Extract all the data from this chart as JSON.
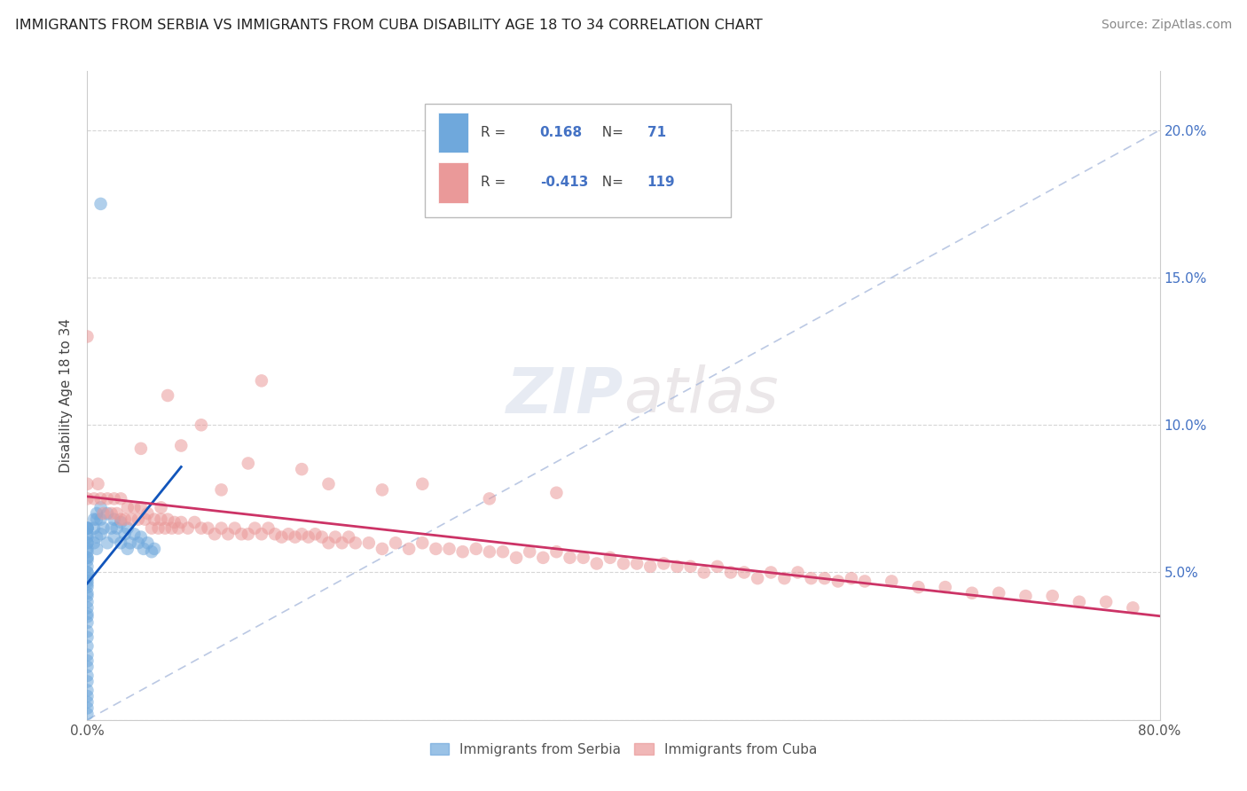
{
  "title": "IMMIGRANTS FROM SERBIA VS IMMIGRANTS FROM CUBA DISABILITY AGE 18 TO 34 CORRELATION CHART",
  "source": "Source: ZipAtlas.com",
  "ylabel": "Disability Age 18 to 34",
  "xlim": [
    0.0,
    0.8
  ],
  "ylim": [
    0.0,
    0.22
  ],
  "serbia_color": "#6fa8dc",
  "cuba_color": "#ea9999",
  "serbia_line_color": "#1155bb",
  "cuba_line_color": "#cc3366",
  "diag_color": "#aabbdd",
  "serbia_R": 0.168,
  "serbia_N": 71,
  "cuba_R": -0.413,
  "cuba_N": 119,
  "legend_serbia": "Immigrants from Serbia",
  "legend_cuba": "Immigrants from Cuba",
  "watermark_zip": "ZIP",
  "watermark_atlas": "atlas",
  "right_tick_color": "#4472c4",
  "serbia_x": [
    0.0,
    0.0,
    0.0,
    0.0,
    0.0,
    0.0,
    0.0,
    0.0,
    0.0,
    0.0,
    0.0,
    0.0,
    0.0,
    0.0,
    0.0,
    0.0,
    0.0,
    0.0,
    0.0,
    0.0,
    0.0,
    0.0,
    0.0,
    0.0,
    0.0,
    0.0,
    0.0,
    0.0,
    0.0,
    0.0,
    0.0,
    0.0,
    0.0,
    0.0,
    0.0,
    0.0,
    0.0,
    0.0,
    0.0,
    0.0,
    0.005,
    0.005,
    0.005,
    0.007,
    0.007,
    0.007,
    0.007,
    0.01,
    0.01,
    0.01,
    0.012,
    0.015,
    0.015,
    0.018,
    0.02,
    0.02,
    0.022,
    0.025,
    0.025,
    0.028,
    0.03,
    0.03,
    0.032,
    0.035,
    0.038,
    0.04,
    0.042,
    0.045,
    0.048,
    0.05,
    0.01
  ],
  "serbia_y": [
    0.065,
    0.065,
    0.065,
    0.065,
    0.063,
    0.062,
    0.06,
    0.06,
    0.058,
    0.057,
    0.055,
    0.055,
    0.054,
    0.052,
    0.05,
    0.05,
    0.048,
    0.047,
    0.046,
    0.045,
    0.043,
    0.042,
    0.04,
    0.038,
    0.036,
    0.035,
    0.033,
    0.03,
    0.028,
    0.025,
    0.022,
    0.02,
    0.018,
    0.015,
    0.013,
    0.01,
    0.008,
    0.006,
    0.004,
    0.002,
    0.068,
    0.065,
    0.06,
    0.07,
    0.068,
    0.062,
    0.058,
    0.072,
    0.068,
    0.063,
    0.065,
    0.07,
    0.06,
    0.065,
    0.068,
    0.062,
    0.065,
    0.067,
    0.06,
    0.063,
    0.065,
    0.058,
    0.06,
    0.063,
    0.06,
    0.062,
    0.058,
    0.06,
    0.057,
    0.058,
    0.175
  ],
  "cuba_x": [
    0.0,
    0.0,
    0.0,
    0.005,
    0.008,
    0.01,
    0.012,
    0.015,
    0.018,
    0.02,
    0.022,
    0.025,
    0.028,
    0.03,
    0.033,
    0.035,
    0.038,
    0.04,
    0.043,
    0.045,
    0.048,
    0.05,
    0.053,
    0.055,
    0.058,
    0.06,
    0.063,
    0.065,
    0.068,
    0.07,
    0.075,
    0.08,
    0.085,
    0.09,
    0.095,
    0.1,
    0.105,
    0.11,
    0.115,
    0.12,
    0.125,
    0.13,
    0.135,
    0.14,
    0.145,
    0.15,
    0.155,
    0.16,
    0.165,
    0.17,
    0.175,
    0.18,
    0.185,
    0.19,
    0.195,
    0.2,
    0.21,
    0.22,
    0.23,
    0.24,
    0.25,
    0.26,
    0.27,
    0.28,
    0.29,
    0.3,
    0.31,
    0.32,
    0.33,
    0.34,
    0.35,
    0.36,
    0.37,
    0.38,
    0.39,
    0.4,
    0.41,
    0.42,
    0.43,
    0.44,
    0.45,
    0.46,
    0.47,
    0.48,
    0.49,
    0.5,
    0.51,
    0.52,
    0.53,
    0.54,
    0.55,
    0.56,
    0.57,
    0.58,
    0.6,
    0.62,
    0.64,
    0.66,
    0.68,
    0.7,
    0.72,
    0.74,
    0.76,
    0.78,
    0.085,
    0.12,
    0.06,
    0.18,
    0.25,
    0.3,
    0.35,
    0.13,
    0.22,
    0.16,
    0.04,
    0.07,
    0.1,
    0.025,
    0.055
  ],
  "cuba_y": [
    0.08,
    0.075,
    0.13,
    0.075,
    0.08,
    0.075,
    0.07,
    0.075,
    0.07,
    0.075,
    0.07,
    0.075,
    0.068,
    0.072,
    0.068,
    0.072,
    0.068,
    0.072,
    0.068,
    0.07,
    0.065,
    0.068,
    0.065,
    0.068,
    0.065,
    0.068,
    0.065,
    0.067,
    0.065,
    0.067,
    0.065,
    0.067,
    0.065,
    0.065,
    0.063,
    0.065,
    0.063,
    0.065,
    0.063,
    0.063,
    0.065,
    0.063,
    0.065,
    0.063,
    0.062,
    0.063,
    0.062,
    0.063,
    0.062,
    0.063,
    0.062,
    0.06,
    0.062,
    0.06,
    0.062,
    0.06,
    0.06,
    0.058,
    0.06,
    0.058,
    0.06,
    0.058,
    0.058,
    0.057,
    0.058,
    0.057,
    0.057,
    0.055,
    0.057,
    0.055,
    0.057,
    0.055,
    0.055,
    0.053,
    0.055,
    0.053,
    0.053,
    0.052,
    0.053,
    0.052,
    0.052,
    0.05,
    0.052,
    0.05,
    0.05,
    0.048,
    0.05,
    0.048,
    0.05,
    0.048,
    0.048,
    0.047,
    0.048,
    0.047,
    0.047,
    0.045,
    0.045,
    0.043,
    0.043,
    0.042,
    0.042,
    0.04,
    0.04,
    0.038,
    0.1,
    0.087,
    0.11,
    0.08,
    0.08,
    0.075,
    0.077,
    0.115,
    0.078,
    0.085,
    0.092,
    0.093,
    0.078,
    0.068,
    0.072
  ]
}
